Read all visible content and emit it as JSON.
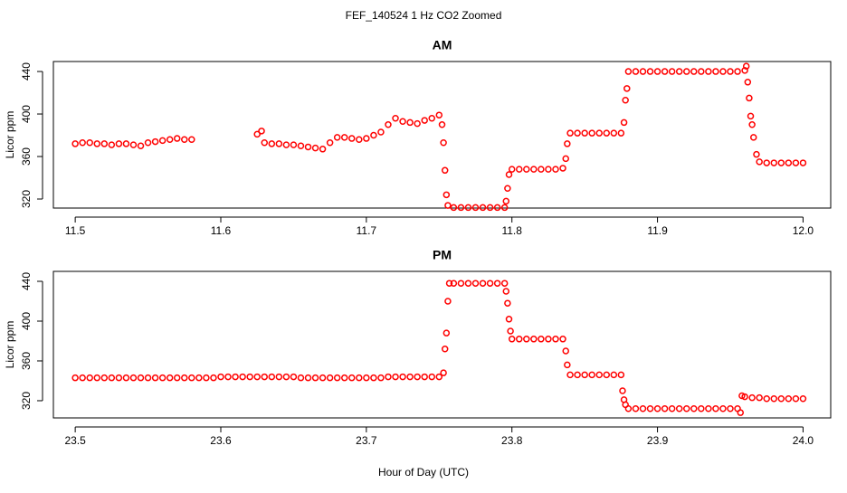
{
  "title": "FEF_140524  1 Hz CO2 Zoomed",
  "xlabel": "Hour of Day (UTC)",
  "chart_data": [
    {
      "type": "scatter",
      "title": "AM",
      "ylabel": "Licor ppm",
      "color": "#ff0000",
      "xlim": [
        11.485,
        12.019
      ],
      "ylim": [
        311.5,
        449.4
      ],
      "xticks": [
        11.5,
        11.6,
        11.7,
        11.8,
        11.9,
        {
          "value": 12,
          "label": "12.0"
        }
      ],
      "yticks": [
        320,
        360,
        400,
        440
      ],
      "x": [
        11.5,
        11.505,
        11.51,
        11.515,
        11.52,
        11.525,
        11.53,
        11.535,
        11.54,
        11.545,
        11.55,
        11.555,
        11.56,
        11.565,
        11.57,
        11.575,
        11.58,
        11.625,
        11.628,
        11.63,
        11.635,
        11.64,
        11.645,
        11.65,
        11.655,
        11.66,
        11.665,
        11.67,
        11.675,
        11.68,
        11.685,
        11.69,
        11.695,
        11.7,
        11.705,
        11.71,
        11.715,
        11.72,
        11.725,
        11.73,
        11.735,
        11.74,
        11.745,
        11.75,
        11.752,
        11.753,
        11.754,
        11.755,
        11.756,
        11.76,
        11.765,
        11.77,
        11.775,
        11.78,
        11.785,
        11.79,
        11.795,
        11.796,
        11.797,
        11.798,
        11.8,
        11.805,
        11.81,
        11.815,
        11.82,
        11.825,
        11.83,
        11.835,
        11.837,
        11.838,
        11.84,
        11.845,
        11.85,
        11.855,
        11.86,
        11.865,
        11.87,
        11.875,
        11.877,
        11.878,
        11.879,
        11.88,
        11.885,
        11.89,
        11.895,
        11.9,
        11.905,
        11.91,
        11.915,
        11.92,
        11.925,
        11.93,
        11.935,
        11.94,
        11.945,
        11.95,
        11.955,
        11.96,
        11.961,
        11.962,
        11.963,
        11.964,
        11.965,
        11.966,
        11.968,
        11.97,
        11.975,
        11.98,
        11.985,
        11.99,
        11.995,
        12.0
      ],
      "values": [
        372,
        373,
        373,
        372,
        372,
        371,
        372,
        372,
        371,
        370,
        373,
        374,
        375,
        376,
        377,
        376,
        376,
        381,
        384,
        373,
        372,
        372,
        371,
        371,
        370,
        369,
        368,
        367,
        373,
        378,
        378,
        377,
        376,
        377,
        380,
        383,
        390,
        396,
        393,
        392,
        391,
        394,
        396,
        399,
        390,
        373,
        347,
        324,
        314,
        312,
        312,
        312,
        312,
        312,
        312,
        312,
        312,
        318,
        330,
        343,
        348,
        348,
        348,
        348,
        348,
        348,
        348,
        349,
        358,
        372,
        382,
        382,
        382,
        382,
        382,
        382,
        382,
        382,
        392,
        413,
        424,
        440,
        440,
        440,
        440,
        440,
        440,
        440,
        440,
        440,
        440,
        440,
        440,
        440,
        440,
        440,
        440,
        441,
        445,
        430,
        415,
        398,
        390,
        378,
        362,
        355,
        354,
        354,
        354,
        354,
        354,
        354
      ]
    },
    {
      "type": "scatter",
      "title": "PM",
      "ylabel": "Licor ppm",
      "color": "#ff0000",
      "xlim": [
        23.485,
        24.019
      ],
      "ylim": [
        302.7,
        450
      ],
      "xticks": [
        23.5,
        23.6,
        23.7,
        23.8,
        23.9,
        {
          "value": 24,
          "label": "24.0"
        }
      ],
      "yticks": [
        320,
        360,
        400,
        440
      ],
      "x": [
        23.5,
        23.505,
        23.51,
        23.515,
        23.52,
        23.525,
        23.53,
        23.535,
        23.54,
        23.545,
        23.55,
        23.555,
        23.56,
        23.565,
        23.57,
        23.575,
        23.58,
        23.585,
        23.59,
        23.595,
        23.6,
        23.605,
        23.61,
        23.615,
        23.62,
        23.625,
        23.63,
        23.635,
        23.64,
        23.645,
        23.65,
        23.655,
        23.66,
        23.665,
        23.67,
        23.675,
        23.68,
        23.685,
        23.69,
        23.695,
        23.7,
        23.705,
        23.71,
        23.715,
        23.72,
        23.725,
        23.73,
        23.735,
        23.74,
        23.745,
        23.75,
        23.753,
        23.754,
        23.755,
        23.756,
        23.757,
        23.76,
        23.765,
        23.77,
        23.775,
        23.78,
        23.785,
        23.79,
        23.795,
        23.796,
        23.797,
        23.798,
        23.799,
        23.8,
        23.805,
        23.81,
        23.815,
        23.82,
        23.825,
        23.83,
        23.835,
        23.837,
        23.838,
        23.84,
        23.845,
        23.85,
        23.855,
        23.86,
        23.865,
        23.87,
        23.875,
        23.876,
        23.877,
        23.878,
        23.88,
        23.885,
        23.89,
        23.895,
        23.9,
        23.905,
        23.91,
        23.915,
        23.92,
        23.925,
        23.93,
        23.935,
        23.94,
        23.945,
        23.95,
        23.955,
        23.957,
        23.958,
        23.96,
        23.965,
        23.97,
        23.975,
        23.98,
        23.985,
        23.99,
        23.995,
        24.0
      ],
      "values": [
        343,
        343,
        343,
        343,
        343,
        343,
        343,
        343,
        343,
        343,
        343,
        343,
        343,
        343,
        343,
        343,
        343,
        343,
        343,
        343,
        344,
        344,
        344,
        344,
        344,
        344,
        344,
        344,
        344,
        344,
        344,
        343,
        343,
        343,
        343,
        343,
        343,
        343,
        343,
        343,
        343,
        343,
        343,
        344,
        344,
        344,
        344,
        344,
        344,
        344,
        344,
        348,
        372,
        388,
        420,
        438,
        438,
        438,
        438,
        438,
        438,
        438,
        438,
        438,
        430,
        418,
        402,
        390,
        382,
        382,
        382,
        382,
        382,
        382,
        382,
        382,
        370,
        356,
        346,
        346,
        346,
        346,
        346,
        346,
        346,
        346,
        330,
        321,
        316,
        312,
        312,
        312,
        312,
        312,
        312,
        312,
        312,
        312,
        312,
        312,
        312,
        312,
        312,
        312,
        312,
        308,
        325,
        324,
        323,
        323,
        322,
        322,
        322,
        322,
        322,
        322
      ]
    }
  ]
}
